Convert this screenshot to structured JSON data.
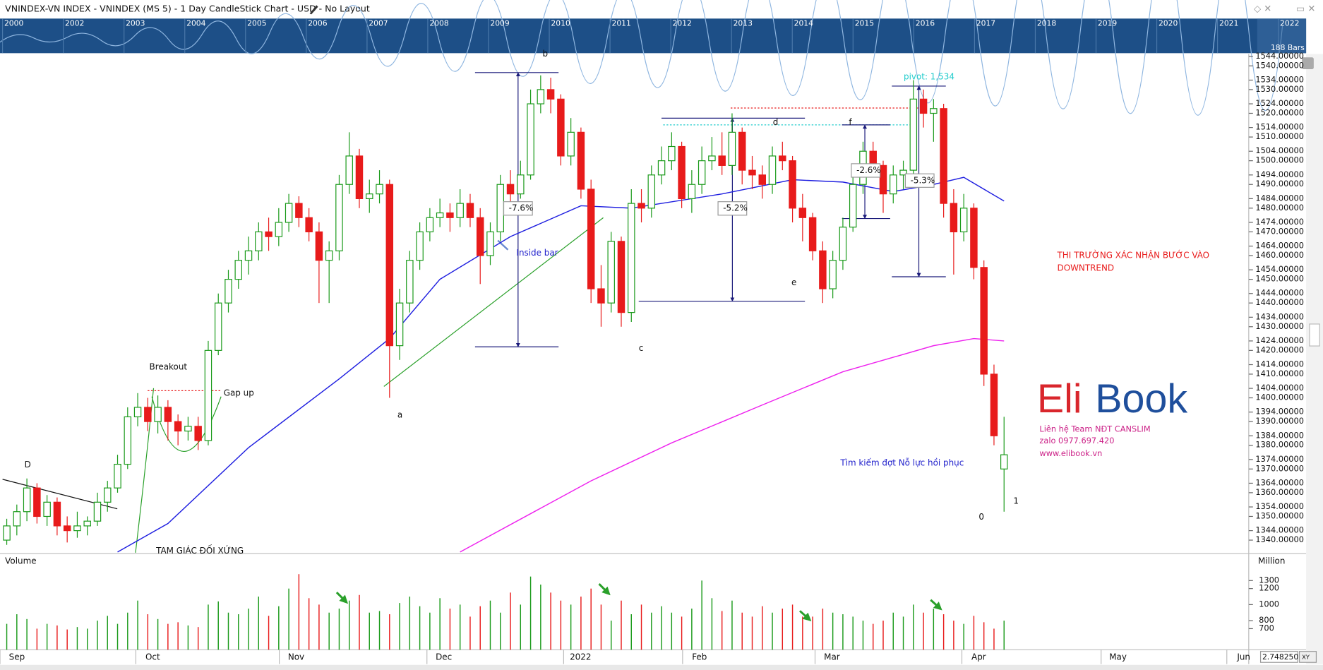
{
  "chart_data": {
    "type": "candlestick",
    "title": "VNINDEX-VN INDEX - VNINDEX (MS 5) - 1 Day CandleStick Chart - USD - No Layout",
    "up_color": "#1a9a1a",
    "down_color": "#e81b1b",
    "ohlc": [
      [
        1340,
        1349,
        1338,
        1346
      ],
      [
        1346,
        1355,
        1342,
        1352
      ],
      [
        1352,
        1366,
        1348,
        1362
      ],
      [
        1362,
        1364,
        1347,
        1350
      ],
      [
        1350,
        1359,
        1346,
        1356
      ],
      [
        1356,
        1358,
        1342,
        1346
      ],
      [
        1346,
        1350,
        1339,
        1344
      ],
      [
        1344,
        1352,
        1341,
        1346
      ],
      [
        1346,
        1350,
        1342,
        1348
      ],
      [
        1348,
        1360,
        1346,
        1356
      ],
      [
        1356,
        1365,
        1352,
        1362
      ],
      [
        1362,
        1376,
        1360,
        1372
      ],
      [
        1372,
        1396,
        1370,
        1392
      ],
      [
        1392,
        1402,
        1388,
        1396
      ],
      [
        1396,
        1400,
        1386,
        1390
      ],
      [
        1390,
        1401,
        1385,
        1396
      ],
      [
        1396,
        1399,
        1382,
        1390
      ],
      [
        1390,
        1393,
        1380,
        1386
      ],
      [
        1386,
        1392,
        1382,
        1388
      ],
      [
        1388,
        1392,
        1378,
        1382
      ],
      [
        1382,
        1424,
        1380,
        1420
      ],
      [
        1420,
        1444,
        1418,
        1440
      ],
      [
        1440,
        1454,
        1436,
        1450
      ],
      [
        1450,
        1462,
        1446,
        1458
      ],
      [
        1458,
        1468,
        1452,
        1462
      ],
      [
        1462,
        1474,
        1458,
        1470
      ],
      [
        1470,
        1476,
        1462,
        1468
      ],
      [
        1468,
        1480,
        1464,
        1474
      ],
      [
        1474,
        1486,
        1470,
        1482
      ],
      [
        1482,
        1485,
        1472,
        1476
      ],
      [
        1476,
        1480,
        1466,
        1470
      ],
      [
        1470,
        1474,
        1440,
        1458
      ],
      [
        1458,
        1466,
        1440,
        1462
      ],
      [
        1462,
        1494,
        1458,
        1490
      ],
      [
        1490,
        1512,
        1486,
        1502
      ],
      [
        1502,
        1505,
        1480,
        1484
      ],
      [
        1484,
        1492,
        1478,
        1486
      ],
      [
        1486,
        1496,
        1482,
        1490
      ],
      [
        1490,
        1492,
        1400,
        1422
      ],
      [
        1422,
        1446,
        1416,
        1440
      ],
      [
        1440,
        1462,
        1436,
        1458
      ],
      [
        1458,
        1474,
        1454,
        1470
      ],
      [
        1470,
        1480,
        1466,
        1476
      ],
      [
        1476,
        1484,
        1472,
        1478
      ],
      [
        1478,
        1482,
        1470,
        1476
      ],
      [
        1476,
        1488,
        1472,
        1482
      ],
      [
        1482,
        1486,
        1472,
        1476
      ],
      [
        1476,
        1480,
        1448,
        1460
      ],
      [
        1460,
        1474,
        1456,
        1470
      ],
      [
        1470,
        1494,
        1466,
        1490
      ],
      [
        1490,
        1496,
        1482,
        1486
      ],
      [
        1486,
        1500,
        1484,
        1494
      ],
      [
        1494,
        1530,
        1492,
        1524
      ],
      [
        1524,
        1536,
        1520,
        1530
      ],
      [
        1530,
        1535,
        1520,
        1526
      ],
      [
        1526,
        1528,
        1498,
        1502
      ],
      [
        1502,
        1518,
        1498,
        1512
      ],
      [
        1512,
        1514,
        1484,
        1488
      ],
      [
        1488,
        1492,
        1440,
        1446
      ],
      [
        1446,
        1456,
        1430,
        1440
      ],
      [
        1440,
        1470,
        1436,
        1466
      ],
      [
        1466,
        1468,
        1430,
        1436
      ],
      [
        1436,
        1488,
        1432,
        1482
      ],
      [
        1482,
        1488,
        1474,
        1480
      ],
      [
        1480,
        1498,
        1476,
        1494
      ],
      [
        1494,
        1506,
        1490,
        1500
      ],
      [
        1500,
        1512,
        1496,
        1506
      ],
      [
        1506,
        1508,
        1480,
        1484
      ],
      [
        1484,
        1496,
        1478,
        1490
      ],
      [
        1490,
        1506,
        1486,
        1500
      ],
      [
        1500,
        1510,
        1496,
        1502
      ],
      [
        1502,
        1512,
        1494,
        1498
      ],
      [
        1498,
        1520,
        1494,
        1512
      ],
      [
        1512,
        1514,
        1490,
        1496
      ],
      [
        1496,
        1502,
        1488,
        1494
      ],
      [
        1494,
        1498,
        1484,
        1490
      ],
      [
        1490,
        1506,
        1486,
        1502
      ],
      [
        1502,
        1508,
        1496,
        1500
      ],
      [
        1500,
        1502,
        1474,
        1480
      ],
      [
        1480,
        1486,
        1466,
        1476
      ],
      [
        1476,
        1478,
        1458,
        1462
      ],
      [
        1462,
        1466,
        1440,
        1446
      ],
      [
        1446,
        1462,
        1442,
        1458
      ],
      [
        1458,
        1476,
        1454,
        1472
      ],
      [
        1472,
        1494,
        1470,
        1490
      ],
      [
        1490,
        1508,
        1486,
        1504
      ],
      [
        1504,
        1508,
        1494,
        1498
      ],
      [
        1498,
        1500,
        1478,
        1486
      ],
      [
        1486,
        1498,
        1482,
        1494
      ],
      [
        1494,
        1500,
        1488,
        1496
      ],
      [
        1496,
        1534,
        1494,
        1526
      ],
      [
        1526,
        1530,
        1514,
        1520
      ],
      [
        1520,
        1526,
        1508,
        1522
      ],
      [
        1522,
        1524,
        1476,
        1482
      ],
      [
        1482,
        1488,
        1452,
        1470
      ],
      [
        1470,
        1486,
        1466,
        1480
      ],
      [
        1480,
        1482,
        1450,
        1455
      ],
      [
        1455,
        1458,
        1405,
        1410
      ],
      [
        1410,
        1414,
        1380,
        1384
      ],
      [
        1370,
        1392,
        1352,
        1376
      ]
    ],
    "ylim": [
      1334.7,
      1545
    ],
    "yticks": [
      {
        "value": 1544,
        "label": "1544.00000"
      },
      {
        "value": 1540,
        "label": "1540.00000"
      },
      {
        "value": 1534,
        "label": "1534.00000"
      },
      {
        "value": 1530,
        "label": "1530.00000"
      },
      {
        "value": 1524,
        "label": "1524.00000"
      },
      {
        "value": 1520,
        "label": "1520.00000"
      },
      {
        "value": 1514,
        "label": "1514.00000"
      },
      {
        "value": 1510,
        "label": "1510.00000"
      },
      {
        "value": 1504,
        "label": "1504.00000"
      },
      {
        "value": 1500,
        "label": "1500.00000"
      },
      {
        "value": 1494,
        "label": "1494.00000"
      },
      {
        "value": 1490,
        "label": "1490.00000"
      },
      {
        "value": 1484,
        "label": "1484.00000"
      },
      {
        "value": 1480,
        "label": "1480.00000"
      },
      {
        "value": 1474,
        "label": "1474.00000"
      },
      {
        "value": 1470,
        "label": "1470.00000"
      },
      {
        "value": 1464,
        "label": "1464.00000"
      },
      {
        "value": 1460,
        "label": "1460.00000"
      },
      {
        "value": 1454,
        "label": "1454.00000"
      },
      {
        "value": 1450,
        "label": "1450.00000"
      },
      {
        "value": 1444,
        "label": "1444.00000"
      },
      {
        "value": 1440,
        "label": "1440.00000"
      },
      {
        "value": 1434,
        "label": "1434.00000"
      },
      {
        "value": 1430,
        "label": "1430.00000"
      },
      {
        "value": 1424,
        "label": "1424.00000"
      },
      {
        "value": 1420,
        "label": "1420.00000"
      },
      {
        "value": 1414,
        "label": "1414.00000"
      },
      {
        "value": 1410,
        "label": "1410.00000"
      },
      {
        "value": 1404,
        "label": "1404.00000"
      },
      {
        "value": 1400,
        "label": "1400.00000"
      },
      {
        "value": 1394,
        "label": "1394.00000"
      },
      {
        "value": 1390,
        "label": "1390.00000"
      },
      {
        "value": 1384,
        "label": "1384.00000"
      },
      {
        "value": 1380,
        "label": "1380.00000"
      },
      {
        "value": 1374,
        "label": "1374.00000"
      },
      {
        "value": 1370,
        "label": "1370.00000"
      },
      {
        "value": 1364,
        "label": "1364.00000"
      },
      {
        "value": 1360,
        "label": "1360.00000"
      },
      {
        "value": 1354,
        "label": "1354.00000"
      },
      {
        "value": 1350,
        "label": "1350.00000"
      },
      {
        "value": 1344,
        "label": "1344.00000"
      },
      {
        "value": 1340,
        "label": "1340.00000"
      }
    ],
    "x_labels": [
      "Sep",
      "Oct",
      "Nov",
      "Dec",
      "2022",
      "Feb",
      "Mar",
      "Apr",
      "May",
      "Jun"
    ],
    "moving_averages": [
      {
        "color": "#1f1fe0",
        "x": [
          11,
          16,
          24,
          33,
          38,
          43,
          50,
          57,
          62,
          71,
          78,
          83,
          88,
          92,
          95,
          99
        ],
        "values": [
          1335,
          1347,
          1379,
          1408,
          1425,
          1450,
          1468,
          1481,
          1480,
          1486,
          1492,
          1491,
          1487,
          1490,
          1493,
          1483
        ]
      },
      {
        "color": "#ee22ee",
        "x": [
          45,
          58,
          66,
          75,
          83,
          92,
          96,
          99
        ],
        "values": [
          1335,
          1365,
          1381,
          1397,
          1411,
          1422,
          1425,
          1424
        ]
      }
    ],
    "volume": {
      "label": "Volume",
      "unit": "Million",
      "ylim": [
        437,
        1616
      ],
      "yticks": [
        700,
        800,
        1000,
        1200,
        1300
      ],
      "values": [
        760,
        880,
        820,
        700,
        760,
        740,
        690,
        720,
        700,
        800,
        860,
        760,
        900,
        1050,
        880,
        820,
        760,
        780,
        740,
        720,
        1000,
        1040,
        900,
        880,
        950,
        1100,
        860,
        980,
        1200,
        1380,
        1080,
        1000,
        900,
        950,
        1050,
        1120,
        900,
        920,
        880,
        1020,
        1100,
        980,
        900,
        1080,
        950,
        1000,
        850,
        980,
        1050,
        900,
        1150,
        1000,
        1350,
        1250,
        1150,
        1050,
        1000,
        1100,
        1200,
        1000,
        800,
        1050,
        880,
        1000,
        900,
        980,
        900,
        850,
        950,
        1300,
        1080,
        920,
        1050,
        900,
        850,
        980,
        900,
        950,
        1000,
        850,
        850,
        950,
        900,
        880,
        850,
        800,
        760,
        800,
        900,
        850,
        1000,
        900,
        950,
        880,
        800,
        760,
        860,
        780,
        700,
        800
      ]
    },
    "overview_years": [
      "2000",
      "2002",
      "2003",
      "2004",
      "2005",
      "2006",
      "2007",
      "2008",
      "2009",
      "2010",
      "2011",
      "2012",
      "2013",
      "2014",
      "2015",
      "2016",
      "2017",
      "2018",
      "2019",
      "2020",
      "2021",
      "2022"
    ],
    "bars_count": "188 Bars",
    "annotations": [
      "Breakout",
      "Gap up",
      "D",
      "TAM GIÁC ĐỐI XỨNG",
      "a",
      "b",
      "c",
      "d",
      "e",
      "f",
      "-7.6%",
      "-5.2%",
      "-2.6%",
      "-5.3%",
      "pivot: 1,534",
      "Inside bar",
      "THI TRƯỜNG XÁC NHẬN BƯỚC VÀO",
      "DOWNTREND",
      "Tìm kiếm đợt Nỗ lực hồi phục",
      "0",
      "1"
    ],
    "logo": {
      "left": "Eli",
      "right": "Book",
      "lines": [
        "Liên hệ Team NĐT CANSLIM",
        "zalo 0977.697.420",
        "www.elibook.vn"
      ]
    },
    "cursor_value": "2.7482500",
    "xy_label": "XY"
  }
}
